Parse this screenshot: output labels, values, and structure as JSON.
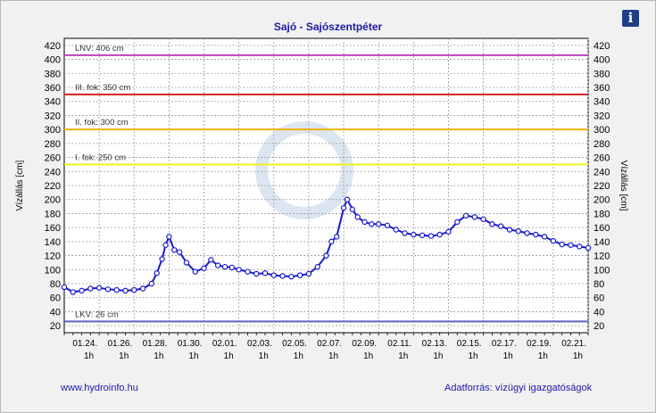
{
  "header": {
    "info_icon": "info-icon",
    "info_glyph": "i"
  },
  "footer": {
    "left": "www.hydroinfo.hu",
    "right": "Adatforrás: vízügyi igazgatóságok"
  },
  "chart_data": {
    "type": "line",
    "title": "Sajó - Sajószentpéter",
    "ylabel_left": "Vízállás [cm]",
    "ylabel_right": "Vízállás [cm]",
    "ylim": [
      10,
      430
    ],
    "yticks": [
      20,
      40,
      60,
      80,
      100,
      120,
      140,
      160,
      180,
      200,
      220,
      240,
      260,
      280,
      300,
      320,
      340,
      360,
      380,
      400,
      420
    ],
    "x_range": [
      0,
      30
    ],
    "xticks": [
      {
        "pos": 2,
        "date": "01.24.",
        "hour": "1h"
      },
      {
        "pos": 4,
        "date": "01.26.",
        "hour": "1h"
      },
      {
        "pos": 6,
        "date": "01.28.",
        "hour": "1h"
      },
      {
        "pos": 8,
        "date": "01.30.",
        "hour": "1h"
      },
      {
        "pos": 10,
        "date": "02.01.",
        "hour": "1h"
      },
      {
        "pos": 12,
        "date": "02.03.",
        "hour": "1h"
      },
      {
        "pos": 14,
        "date": "02.05.",
        "hour": "1h"
      },
      {
        "pos": 16,
        "date": "02.07.",
        "hour": "1h"
      },
      {
        "pos": 18,
        "date": "02.09.",
        "hour": "1h"
      },
      {
        "pos": 20,
        "date": "02.11.",
        "hour": "1h"
      },
      {
        "pos": 22,
        "date": "02.13.",
        "hour": "1h"
      },
      {
        "pos": 24,
        "date": "02.15.",
        "hour": "1h"
      },
      {
        "pos": 26,
        "date": "02.17.",
        "hour": "1h"
      },
      {
        "pos": 28,
        "date": "02.19.",
        "hour": "1h"
      },
      {
        "pos": 30,
        "date": "02.21.",
        "hour": "1h"
      }
    ],
    "grid": true,
    "thresholds": [
      {
        "label": "LNV: 406 cm",
        "value": 406,
        "color": "#c040c0"
      },
      {
        "label": "III. fok: 350 cm",
        "value": 350,
        "color": "#d02020"
      },
      {
        "label": "II. fok: 300 cm",
        "value": 300,
        "color": "#f0b000"
      },
      {
        "label": "I. fok: 250 cm",
        "value": 250,
        "color": "#f0f020"
      },
      {
        "label": "LKV: 26 cm",
        "value": 26,
        "color": "#6060c0"
      }
    ],
    "series_color": "#1a1acc",
    "series": [
      {
        "points": [
          [
            0,
            75
          ],
          [
            0.5,
            68
          ],
          [
            1,
            70
          ],
          [
            1.5,
            73
          ],
          [
            2,
            74
          ],
          [
            2.5,
            72
          ],
          [
            3,
            71
          ],
          [
            3.5,
            70
          ],
          [
            4,
            71
          ],
          [
            4.5,
            73
          ],
          [
            5,
            80
          ],
          [
            5.3,
            95
          ],
          [
            5.6,
            115
          ],
          [
            5.8,
            135
          ],
          [
            6,
            147
          ],
          [
            6.3,
            128
          ],
          [
            6.6,
            125
          ],
          [
            7,
            110
          ],
          [
            7.5,
            97
          ],
          [
            8,
            102
          ],
          [
            8.4,
            114
          ],
          [
            8.8,
            106
          ],
          [
            9.2,
            104
          ],
          [
            9.6,
            103
          ],
          [
            10,
            100
          ],
          [
            10.5,
            97
          ],
          [
            11,
            94
          ],
          [
            11.5,
            95
          ],
          [
            12,
            92
          ],
          [
            12.5,
            91
          ],
          [
            13,
            90
          ],
          [
            13.5,
            92
          ],
          [
            14,
            94
          ],
          [
            14.5,
            104
          ],
          [
            15,
            120
          ],
          [
            15.3,
            140
          ],
          [
            15.6,
            147
          ],
          [
            16,
            188
          ],
          [
            16.2,
            200
          ],
          [
            16.5,
            186
          ],
          [
            16.8,
            175
          ],
          [
            17.2,
            168
          ],
          [
            17.6,
            165
          ],
          [
            18,
            165
          ],
          [
            18.5,
            163
          ],
          [
            19,
            157
          ],
          [
            19.5,
            152
          ],
          [
            20,
            150
          ],
          [
            20.5,
            149
          ],
          [
            21,
            148
          ],
          [
            21.5,
            150
          ],
          [
            22,
            154
          ],
          [
            22.5,
            168
          ],
          [
            23,
            177
          ],
          [
            23.5,
            175
          ],
          [
            24,
            172
          ],
          [
            24.5,
            165
          ],
          [
            25,
            162
          ],
          [
            25.5,
            157
          ],
          [
            26,
            155
          ],
          [
            26.5,
            152
          ],
          [
            27,
            150
          ],
          [
            27.5,
            147
          ],
          [
            28,
            141
          ],
          [
            28.5,
            136
          ],
          [
            29,
            135
          ],
          [
            29.5,
            133
          ],
          [
            30,
            131
          ]
        ]
      }
    ]
  }
}
